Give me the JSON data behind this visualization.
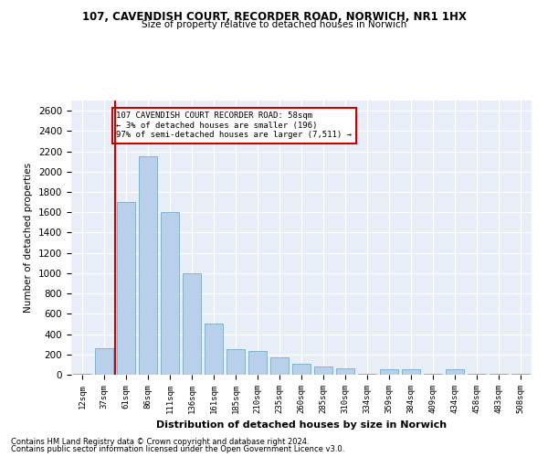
{
  "title1": "107, CAVENDISH COURT, RECORDER ROAD, NORWICH, NR1 1HX",
  "title2": "Size of property relative to detached houses in Norwich",
  "xlabel": "Distribution of detached houses by size in Norwich",
  "ylabel": "Number of detached properties",
  "categories": [
    "12sqm",
    "37sqm",
    "61sqm",
    "86sqm",
    "111sqm",
    "136sqm",
    "161sqm",
    "185sqm",
    "210sqm",
    "235sqm",
    "260sqm",
    "285sqm",
    "310sqm",
    "334sqm",
    "359sqm",
    "384sqm",
    "409sqm",
    "434sqm",
    "458sqm",
    "483sqm",
    "508sqm"
  ],
  "values": [
    10,
    260,
    1700,
    2150,
    1600,
    1000,
    500,
    250,
    230,
    175,
    110,
    80,
    60,
    10,
    55,
    50,
    10,
    50,
    10,
    5,
    10
  ],
  "bar_color": "#b8d0ea",
  "bar_edge_color": "#7aaac8",
  "vline_color": "#cc0000",
  "annotation_text": "107 CAVENDISH COURT RECORDER ROAD: 58sqm\n← 3% of detached houses are smaller (196)\n97% of semi-detached houses are larger (7,511) →",
  "annotation_box_color": "#ffffff",
  "annotation_border_color": "#cc0000",
  "ylim": [
    0,
    2700
  ],
  "yticks": [
    0,
    200,
    400,
    600,
    800,
    1000,
    1200,
    1400,
    1600,
    1800,
    2000,
    2200,
    2400,
    2600
  ],
  "footnote1": "Contains HM Land Registry data © Crown copyright and database right 2024.",
  "footnote2": "Contains public sector information licensed under the Open Government Licence v3.0.",
  "background_color": "#e8eef8",
  "fig_background": "#ffffff"
}
